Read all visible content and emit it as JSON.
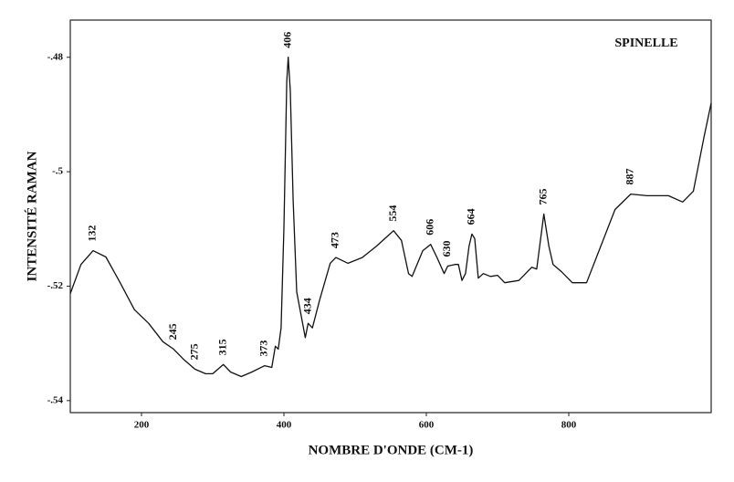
{
  "chart_data": {
    "type": "line",
    "title": "SPINELLE",
    "x_label": "NOMBRE D'ONDE (CM-1)",
    "y_label": "INTENSITÉ RAMAN",
    "color": "#111111",
    "xlim": [
      100,
      1000
    ],
    "ylim": [
      -0.5421,
      -0.4735
    ],
    "xticks": [
      200,
      400,
      600,
      800
    ],
    "yticks": [
      {
        "value": -0.48,
        "label": "-.48"
      },
      {
        "value": -0.5,
        "label": "-.5"
      },
      {
        "value": -0.52,
        "label": "-.52"
      },
      {
        "value": -0.54,
        "label": "-.54"
      }
    ],
    "x": [
      100,
      115,
      132,
      150,
      170,
      190,
      210,
      230,
      245,
      260,
      275,
      290,
      300,
      315,
      325,
      340,
      355,
      373,
      383,
      388,
      392,
      396,
      400,
      404,
      406,
      409,
      413,
      418,
      424,
      430,
      434,
      440,
      450,
      465,
      473,
      490,
      510,
      530,
      554,
      565,
      575,
      580,
      595,
      606,
      615,
      625,
      630,
      640,
      645,
      650,
      655,
      660,
      664,
      668,
      673,
      680,
      690,
      700,
      710,
      730,
      748,
      755,
      765,
      772,
      778,
      790,
      805,
      825,
      845,
      865,
      887,
      910,
      940,
      960,
      975,
      990,
      1000
    ],
    "values": [
      -0.5213,
      -0.5162,
      -0.5138,
      -0.5149,
      -0.5194,
      -0.5241,
      -0.5265,
      -0.5297,
      -0.531,
      -0.5329,
      -0.5345,
      -0.5353,
      -0.5353,
      -0.5337,
      -0.535,
      -0.5358,
      -0.535,
      -0.5339,
      -0.5342,
      -0.5305,
      -0.531,
      -0.5273,
      -0.5098,
      -0.4843,
      -0.48,
      -0.4859,
      -0.505,
      -0.521,
      -0.525,
      -0.529,
      -0.5265,
      -0.5273,
      -0.5225,
      -0.516,
      -0.515,
      -0.516,
      -0.515,
      -0.513,
      -0.5103,
      -0.512,
      -0.5178,
      -0.5183,
      -0.5138,
      -0.5127,
      -0.515,
      -0.5178,
      -0.5165,
      -0.5162,
      -0.5162,
      -0.519,
      -0.5178,
      -0.513,
      -0.5109,
      -0.5117,
      -0.5186,
      -0.5178,
      -0.5183,
      -0.5181,
      -0.5194,
      -0.519,
      -0.5167,
      -0.517,
      -0.5074,
      -0.513,
      -0.5162,
      -0.5175,
      -0.5194,
      -0.5194,
      -0.513,
      -0.5066,
      -0.5039,
      -0.5042,
      -0.5042,
      -0.5053,
      -0.5034,
      -0.4939,
      -0.488
    ],
    "annotations": [
      {
        "value": 132,
        "label": "132"
      },
      {
        "value": 245,
        "label": "245"
      },
      {
        "value": 275,
        "label": "275"
      },
      {
        "value": 315,
        "label": "315"
      },
      {
        "value": 373,
        "label": "373"
      },
      {
        "value": 406,
        "label": "406"
      },
      {
        "value": 434,
        "label": "434"
      },
      {
        "value": 473,
        "label": "473"
      },
      {
        "value": 554,
        "label": "554"
      },
      {
        "value": 606,
        "label": "606"
      },
      {
        "value": 630,
        "label": "630"
      },
      {
        "value": 664,
        "label": "664"
      },
      {
        "value": 765,
        "label": "765"
      },
      {
        "value": 887,
        "label": "887"
      }
    ]
  }
}
